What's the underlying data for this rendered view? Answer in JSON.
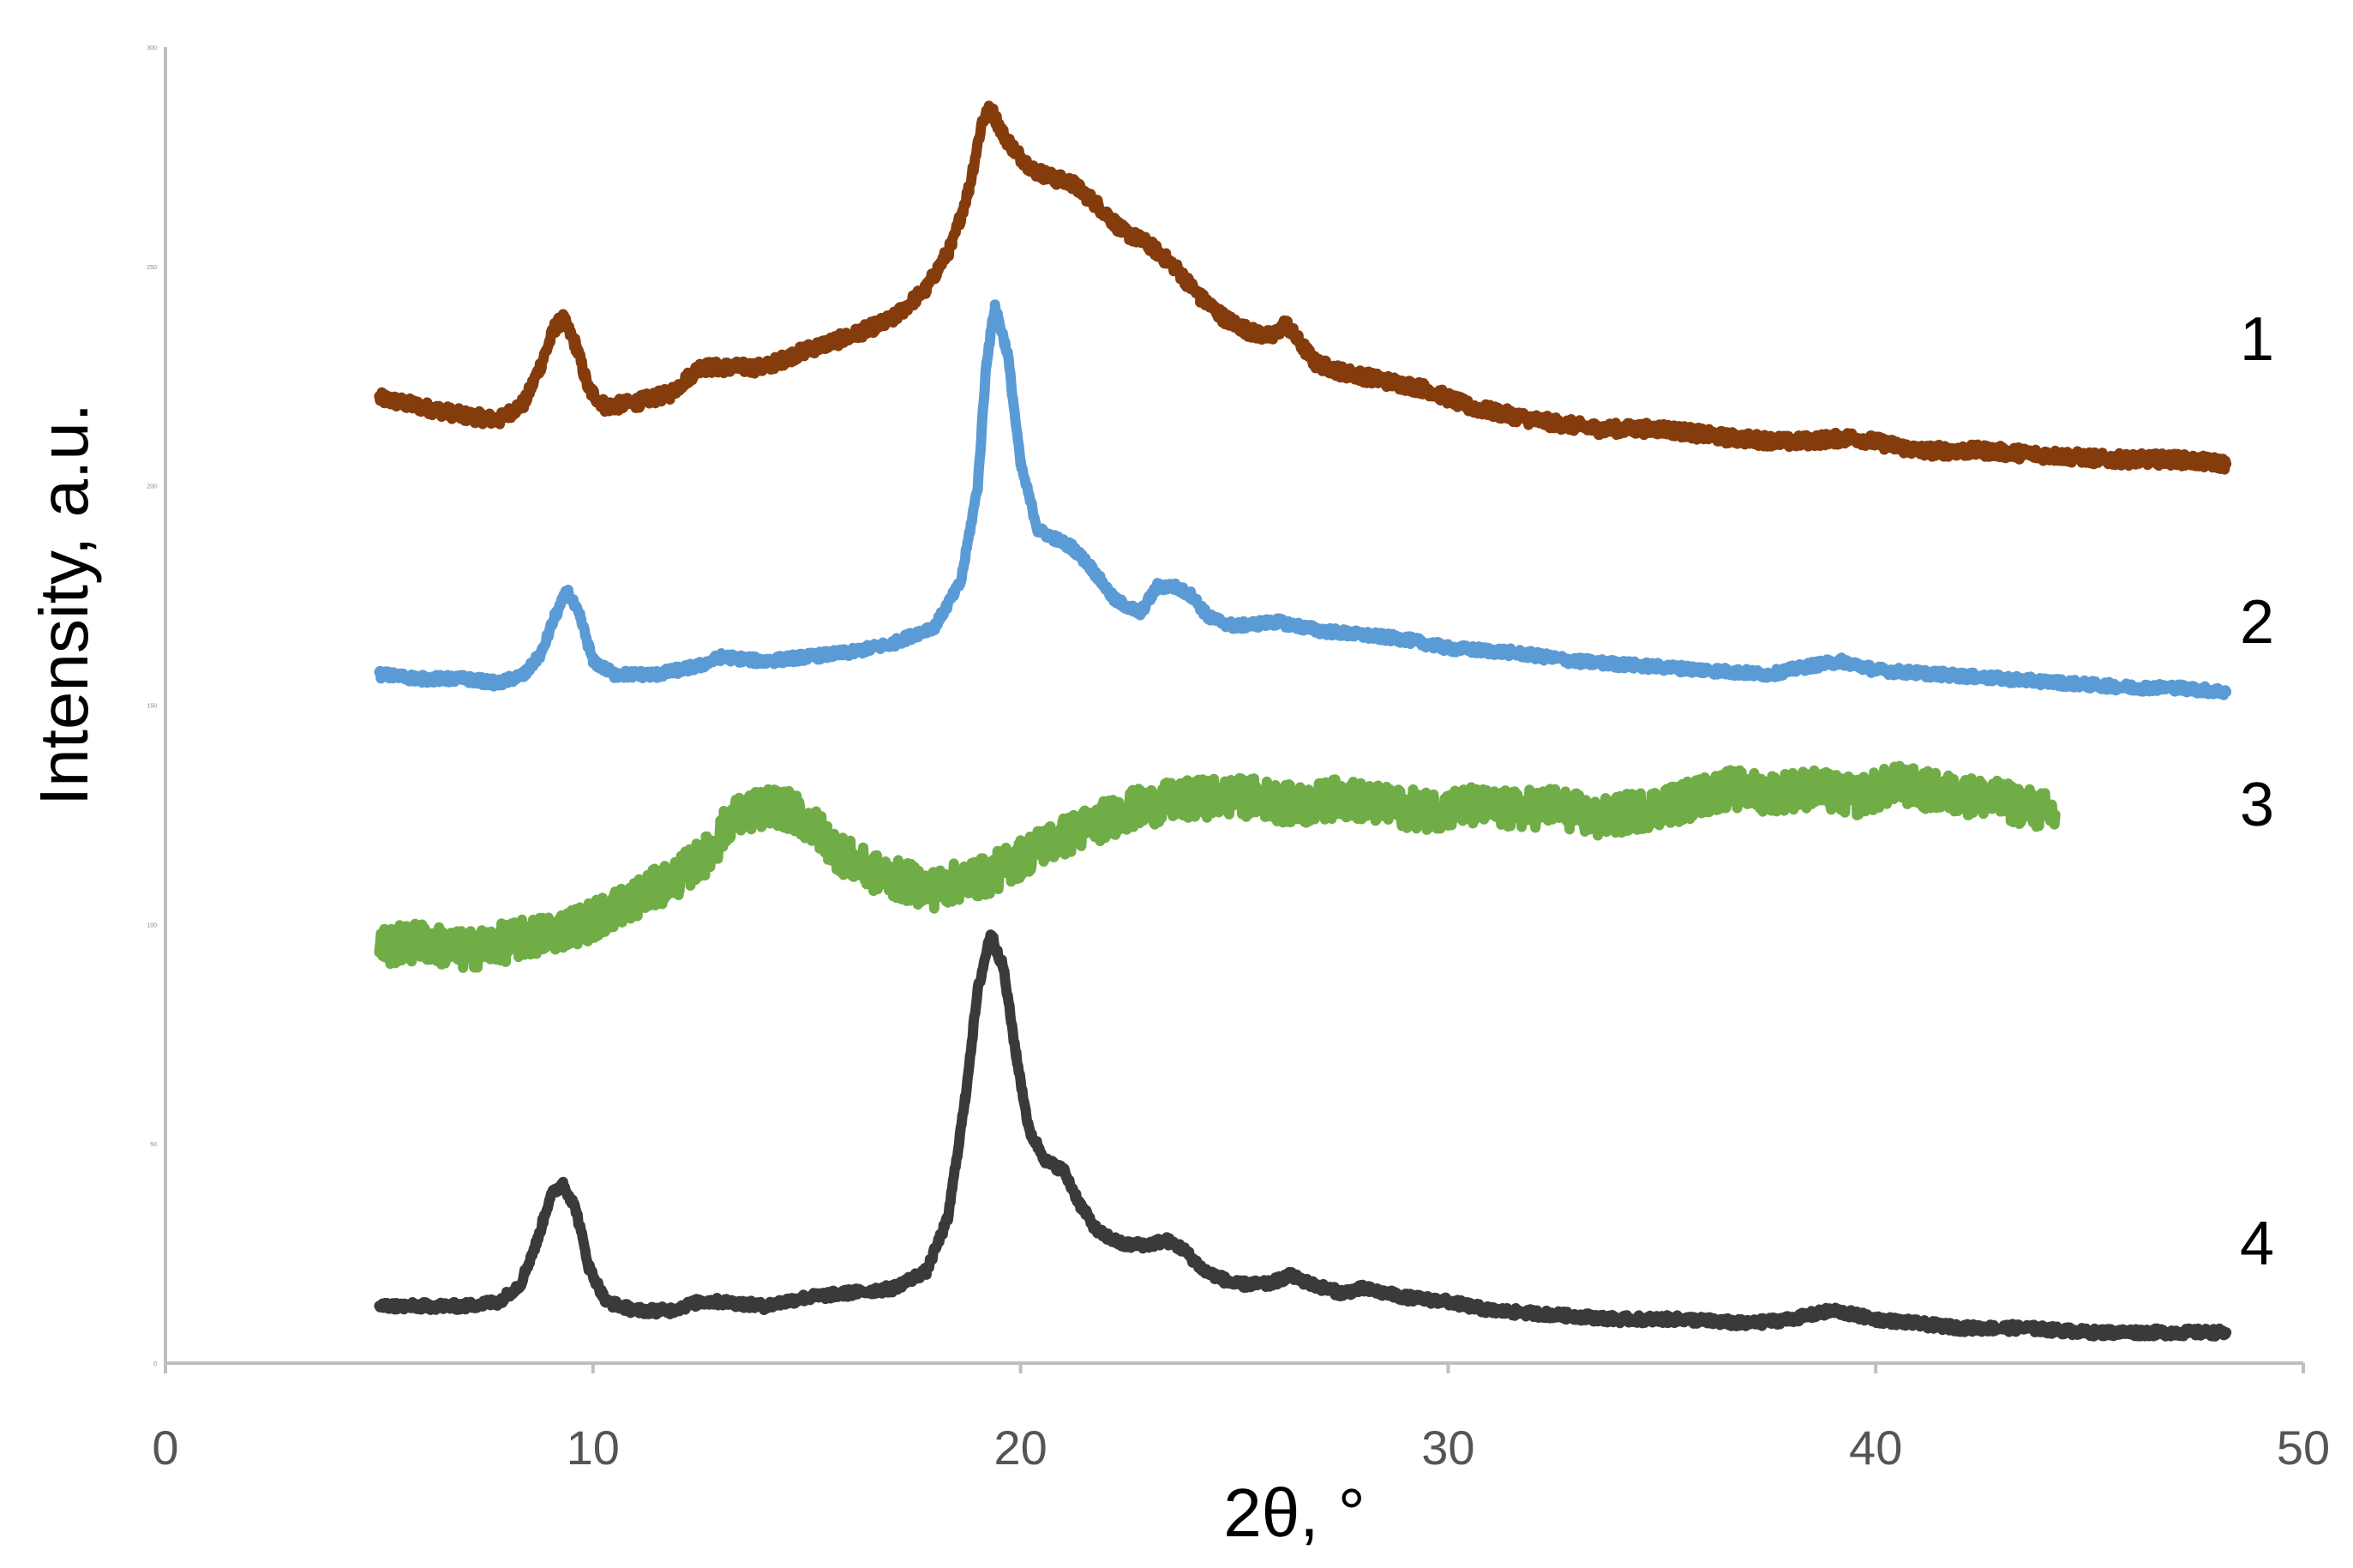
{
  "chart_data": {
    "type": "line",
    "title": "",
    "xlabel": "2θ, °",
    "ylabel": "Intensity, a.u.",
    "xlim": [
      0,
      50
    ],
    "ylim": [
      0,
      300
    ],
    "x_ticks": [
      "0",
      "10",
      "20",
      "30",
      "40",
      "50"
    ],
    "y_ticks": [
      "0",
      "50",
      "100",
      "150",
      "200",
      "250",
      "300"
    ],
    "grid": false,
    "legend": "none",
    "series": [
      {
        "name": "1",
        "color": "#843c0c",
        "points": [
          [
            5.0,
            220
          ],
          [
            6.0,
            218
          ],
          [
            7.0,
            216
          ],
          [
            7.8,
            215
          ],
          [
            8.4,
            219
          ],
          [
            8.8,
            228
          ],
          [
            9.1,
            236
          ],
          [
            9.3,
            238
          ],
          [
            9.6,
            232
          ],
          [
            9.9,
            222
          ],
          [
            10.3,
            218
          ],
          [
            11.0,
            219
          ],
          [
            11.8,
            221
          ],
          [
            12.5,
            227
          ],
          [
            13.0,
            227
          ],
          [
            14.0,
            227
          ],
          [
            15.0,
            231
          ],
          [
            16.0,
            234
          ],
          [
            17.0,
            238
          ],
          [
            17.8,
            245
          ],
          [
            18.4,
            255
          ],
          [
            18.8,
            268
          ],
          [
            19.1,
            283
          ],
          [
            19.3,
            286
          ],
          [
            19.6,
            280
          ],
          [
            19.9,
            276
          ],
          [
            20.3,
            272
          ],
          [
            20.8,
            270
          ],
          [
            21.2,
            269
          ],
          [
            21.8,
            264
          ],
          [
            22.4,
            258
          ],
          [
            23.0,
            255
          ],
          [
            23.6,
            250
          ],
          [
            24.2,
            243
          ],
          [
            24.8,
            238
          ],
          [
            25.4,
            235
          ],
          [
            25.9,
            234
          ],
          [
            26.2,
            237
          ],
          [
            26.5,
            233
          ],
          [
            26.9,
            228
          ],
          [
            27.5,
            226
          ],
          [
            28.5,
            224
          ],
          [
            29.5,
            222
          ],
          [
            30.5,
            218
          ],
          [
            32.0,
            215
          ],
          [
            33.5,
            213
          ],
          [
            35.0,
            213
          ],
          [
            36.5,
            211
          ],
          [
            38.0,
            210
          ],
          [
            39.5,
            211
          ],
          [
            41.0,
            208
          ],
          [
            42.5,
            208
          ],
          [
            44.0,
            207
          ],
          [
            45.5,
            206
          ],
          [
            47.0,
            206
          ],
          [
            48.2,
            205
          ]
        ]
      },
      {
        "name": "2",
        "color": "#5b9bd5",
        "points": [
          [
            5.0,
            157
          ],
          [
            6.0,
            156
          ],
          [
            7.0,
            156
          ],
          [
            7.8,
            155
          ],
          [
            8.4,
            157
          ],
          [
            8.8,
            162
          ],
          [
            9.1,
            170
          ],
          [
            9.4,
            176
          ],
          [
            9.7,
            170
          ],
          [
            10.0,
            160
          ],
          [
            10.5,
            157
          ],
          [
            11.5,
            157
          ],
          [
            12.5,
            159
          ],
          [
            13.0,
            161
          ],
          [
            14.0,
            160
          ],
          [
            15.0,
            161
          ],
          [
            16.0,
            162
          ],
          [
            17.0,
            164
          ],
          [
            18.0,
            168
          ],
          [
            18.6,
            178
          ],
          [
            19.0,
            200
          ],
          [
            19.2,
            228
          ],
          [
            19.4,
            241
          ],
          [
            19.7,
            230
          ],
          [
            20.0,
            205
          ],
          [
            20.4,
            190
          ],
          [
            20.8,
            188
          ],
          [
            21.2,
            186
          ],
          [
            21.6,
            182
          ],
          [
            22.2,
            174
          ],
          [
            22.8,
            171
          ],
          [
            23.2,
            177
          ],
          [
            23.6,
            177
          ],
          [
            24.0,
            175
          ],
          [
            24.4,
            170
          ],
          [
            25.0,
            168
          ],
          [
            26.0,
            169
          ],
          [
            27.0,
            167
          ],
          [
            28.0,
            166
          ],
          [
            29.0,
            165
          ],
          [
            30.0,
            163
          ],
          [
            31.5,
            162
          ],
          [
            33.0,
            160
          ],
          [
            34.5,
            159
          ],
          [
            36.0,
            158
          ],
          [
            37.5,
            157
          ],
          [
            38.5,
            159
          ],
          [
            39.2,
            160
          ],
          [
            40.0,
            158
          ],
          [
            41.5,
            157
          ],
          [
            43.0,
            156
          ],
          [
            44.5,
            155
          ],
          [
            46.0,
            154
          ],
          [
            47.0,
            154
          ],
          [
            48.2,
            153
          ]
        ]
      },
      {
        "name": "3",
        "color": "#70ad47",
        "points": [
          [
            5.0,
            95
          ],
          [
            6.0,
            96
          ],
          [
            7.0,
            94
          ],
          [
            8.0,
            96
          ],
          [
            9.0,
            98
          ],
          [
            10.0,
            101
          ],
          [
            11.0,
            106
          ],
          [
            12.0,
            111
          ],
          [
            12.8,
            117
          ],
          [
            13.2,
            124
          ],
          [
            13.8,
            126
          ],
          [
            14.3,
            127
          ],
          [
            14.8,
            125
          ],
          [
            15.3,
            121
          ],
          [
            15.8,
            116
          ],
          [
            16.5,
            112
          ],
          [
            17.2,
            110
          ],
          [
            18.0,
            108
          ],
          [
            18.6,
            110
          ],
          [
            19.2,
            111
          ],
          [
            19.8,
            114
          ],
          [
            20.5,
            118
          ],
          [
            21.5,
            122
          ],
          [
            22.5,
            126
          ],
          [
            23.5,
            128
          ],
          [
            24.5,
            129
          ],
          [
            25.5,
            129
          ],
          [
            26.5,
            127
          ],
          [
            27.5,
            129
          ],
          [
            28.5,
            127
          ],
          [
            29.5,
            126
          ],
          [
            30.5,
            127
          ],
          [
            31.5,
            126
          ],
          [
            32.5,
            127
          ],
          [
            33.5,
            124
          ],
          [
            34.5,
            126
          ],
          [
            35.5,
            128
          ],
          [
            36.5,
            131
          ],
          [
            37.5,
            130
          ],
          [
            38.5,
            131
          ],
          [
            39.5,
            129
          ],
          [
            40.5,
            132
          ],
          [
            41.5,
            130
          ],
          [
            42.5,
            129
          ],
          [
            43.5,
            127
          ],
          [
            44.2,
            125
          ]
        ]
      },
      {
        "name": "4",
        "color": "#3a3a3a",
        "points": [
          [
            5.0,
            13
          ],
          [
            6.0,
            13
          ],
          [
            7.0,
            13
          ],
          [
            7.8,
            14
          ],
          [
            8.3,
            18
          ],
          [
            8.7,
            28
          ],
          [
            9.0,
            38
          ],
          [
            9.3,
            41
          ],
          [
            9.6,
            35
          ],
          [
            9.9,
            22
          ],
          [
            10.3,
            14
          ],
          [
            11.0,
            12
          ],
          [
            11.8,
            12
          ],
          [
            12.5,
            14
          ],
          [
            13.0,
            14
          ],
          [
            14.0,
            13
          ],
          [
            15.0,
            15
          ],
          [
            16.0,
            16
          ],
          [
            17.0,
            17
          ],
          [
            17.8,
            21
          ],
          [
            18.3,
            33
          ],
          [
            18.7,
            60
          ],
          [
            19.0,
            85
          ],
          [
            19.3,
            98
          ],
          [
            19.6,
            90
          ],
          [
            19.9,
            70
          ],
          [
            20.2,
            53
          ],
          [
            20.6,
            46
          ],
          [
            21.0,
            44
          ],
          [
            21.4,
            36
          ],
          [
            21.8,
            30
          ],
          [
            22.4,
            27
          ],
          [
            23.0,
            27
          ],
          [
            23.4,
            28
          ],
          [
            23.8,
            26
          ],
          [
            24.3,
            21
          ],
          [
            25.0,
            18
          ],
          [
            25.8,
            18
          ],
          [
            26.3,
            20
          ],
          [
            26.8,
            18
          ],
          [
            27.5,
            16
          ],
          [
            28.0,
            17
          ],
          [
            29.0,
            15
          ],
          [
            30.0,
            14
          ],
          [
            31.0,
            12
          ],
          [
            32.5,
            11
          ],
          [
            34.0,
            10
          ],
          [
            35.5,
            10
          ],
          [
            37.0,
            9
          ],
          [
            38.0,
            10
          ],
          [
            39.0,
            12
          ],
          [
            40.0,
            10
          ],
          [
            41.0,
            9
          ],
          [
            42.0,
            8
          ],
          [
            43.5,
            8
          ],
          [
            45.0,
            7
          ],
          [
            46.5,
            7
          ],
          [
            48.2,
            7
          ]
        ]
      }
    ]
  }
}
